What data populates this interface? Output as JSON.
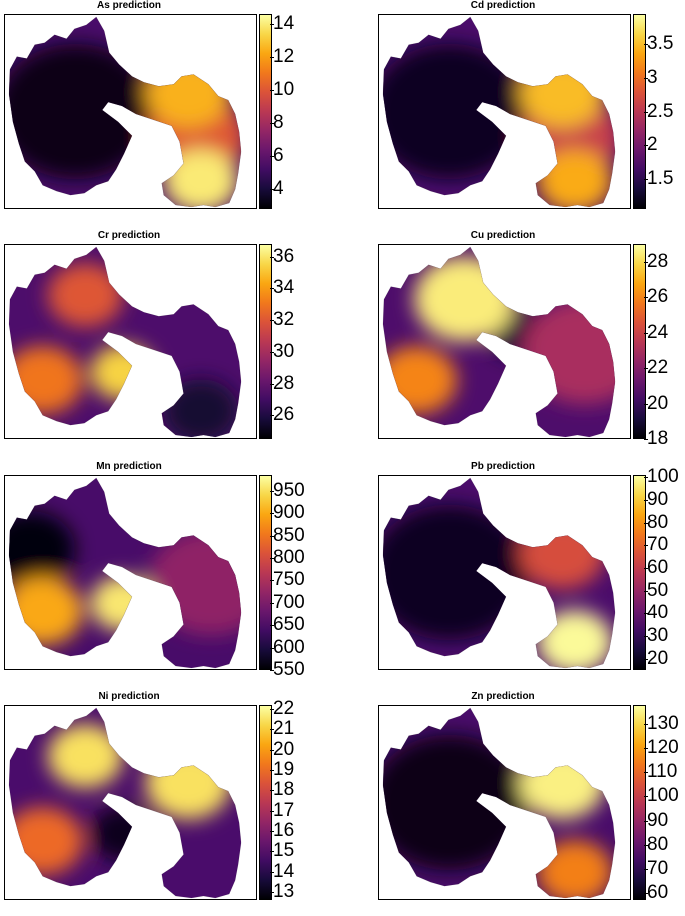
{
  "chart_data": [
    {
      "type": "heatmap",
      "title": "As prediction",
      "colormap": "inferno",
      "colorbar": {
        "min": 2.8,
        "max": 14.6,
        "ticks": [
          4,
          6,
          8,
          10,
          12,
          14
        ]
      },
      "hotspots": [
        {
          "region": "east-upper",
          "value": 12.5
        },
        {
          "region": "east-lower",
          "value": 14.0
        },
        {
          "region": "east-middle",
          "value": 10.0
        },
        {
          "region": "west",
          "value": 3.2
        }
      ]
    },
    {
      "type": "heatmap",
      "title": "Cd prediction",
      "colormap": "inferno",
      "colorbar": {
        "min": 1.05,
        "max": 3.95,
        "ticks": [
          1.5,
          2.0,
          2.5,
          3.0,
          3.5
        ]
      },
      "hotspots": [
        {
          "region": "east-upper",
          "value": 3.5
        },
        {
          "region": "east-lower",
          "value": 3.4
        },
        {
          "region": "east-middle",
          "value": 2.6
        },
        {
          "region": "west",
          "value": 1.2
        }
      ]
    },
    {
      "type": "heatmap",
      "title": "Cr prediction",
      "colormap": "inferno",
      "colorbar": {
        "min": 24.5,
        "max": 36.8,
        "ticks": [
          26,
          28,
          30,
          32,
          34,
          36
        ]
      },
      "hotspots": [
        {
          "region": "notch",
          "value": 35.5
        },
        {
          "region": "west-lower",
          "value": 33
        },
        {
          "region": "north",
          "value": 32
        },
        {
          "region": "east-lower",
          "value": 25.5
        }
      ]
    },
    {
      "type": "heatmap",
      "title": "Cu prediction",
      "colormap": "inferno",
      "colorbar": {
        "min": 18,
        "max": 29,
        "ticks": [
          18,
          20,
          22,
          24,
          26,
          28
        ]
      },
      "hotspots": [
        {
          "region": "north-west",
          "value": 28.5
        },
        {
          "region": "west-lower",
          "value": 26
        },
        {
          "region": "neck",
          "value": 19
        },
        {
          "region": "east",
          "value": 23
        }
      ]
    },
    {
      "type": "heatmap",
      "title": "Mn prediction",
      "colormap": "inferno",
      "colorbar": {
        "min": 550,
        "max": 985,
        "ticks": [
          550,
          600,
          650,
          700,
          750,
          800,
          850,
          900,
          950
        ]
      },
      "hotspots": [
        {
          "region": "notch",
          "value": 960
        },
        {
          "region": "west-lower",
          "value": 900
        },
        {
          "region": "west-upper",
          "value": 560
        },
        {
          "region": "east",
          "value": 720
        }
      ]
    },
    {
      "type": "heatmap",
      "title": "Pb prediction",
      "colormap": "inferno",
      "colorbar": {
        "min": 15,
        "max": 101,
        "ticks": [
          20,
          30,
          40,
          50,
          60,
          70,
          80,
          90,
          100
        ]
      },
      "hotspots": [
        {
          "region": "east-lower",
          "value": 100
        },
        {
          "region": "east-upper",
          "value": 65
        },
        {
          "region": "west",
          "value": 20
        }
      ]
    },
    {
      "type": "heatmap",
      "title": "Ni prediction",
      "colormap": "inferno",
      "colorbar": {
        "min": 12.6,
        "max": 22.2,
        "ticks": [
          13,
          14,
          15,
          16,
          17,
          18,
          19,
          20,
          21,
          22
        ]
      },
      "hotspots": [
        {
          "region": "north",
          "value": 21.5
        },
        {
          "region": "east-upper",
          "value": 21.5
        },
        {
          "region": "notch",
          "value": 13
        },
        {
          "region": "west-lower",
          "value": 19
        }
      ]
    },
    {
      "type": "heatmap",
      "title": "Zn prediction",
      "colormap": "inferno",
      "colorbar": {
        "min": 57,
        "max": 138,
        "ticks": [
          60,
          70,
          80,
          90,
          100,
          110,
          120,
          130
        ]
      },
      "hotspots": [
        {
          "region": "east-upper",
          "value": 135
        },
        {
          "region": "east-lower",
          "value": 115
        },
        {
          "region": "west",
          "value": 60
        }
      ]
    }
  ],
  "colormap_stops": [
    "#000004",
    "#1b0c41",
    "#4a0c6b",
    "#781c6d",
    "#a52c60",
    "#cf4446",
    "#ed6925",
    "#fb9b06",
    "#f7d13d",
    "#fcffa4"
  ]
}
